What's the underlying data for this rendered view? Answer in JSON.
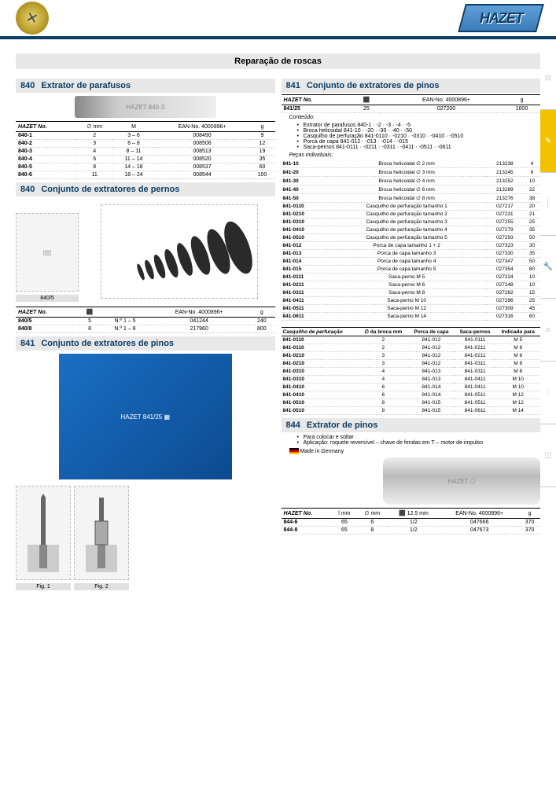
{
  "brand": "HAZET",
  "page_title": "Reparação de roscas",
  "sections": {
    "s840a": {
      "num": "840",
      "name": "Extrator de parafusos"
    },
    "s840b": {
      "num": "840",
      "name": "Conjunto de extratores de pernos"
    },
    "s841a": {
      "num": "841",
      "name": "Conjunto de extratores de pinos"
    },
    "s841b": {
      "num": "841",
      "name": "Conjunto de extratores de pinos"
    },
    "s844": {
      "num": "844",
      "name": "Extrator de pinos"
    }
  },
  "t840": {
    "headers": {
      "no": "HAZET\nNo.",
      "dia": "∅\nmm",
      "m": "M",
      "ean": "EAN-No.\n4000896+"
    },
    "rows": [
      [
        "840-1",
        "2",
        "3 – 6",
        "008490",
        "9"
      ],
      [
        "840-2",
        "3",
        "6 – 8",
        "008506",
        "12"
      ],
      [
        "840-3",
        "4",
        "8 – 11",
        "008513",
        "19"
      ],
      [
        "840-4",
        "6",
        "11 – 14",
        "008520",
        "35"
      ],
      [
        "840-5",
        "8",
        "14 – 18",
        "008537",
        "60"
      ],
      [
        "840-6",
        "11",
        "18 – 24",
        "008544",
        "100"
      ]
    ]
  },
  "t840set": {
    "headers": {
      "no": "HAZET\nNo.",
      "pcs": "pcs",
      "ean": "EAN-No.\n4000896+"
    },
    "rows": [
      [
        "840/5",
        "5",
        "N.º 1 – 5",
        "041244",
        "240"
      ],
      [
        "840/8",
        "8",
        "N.º 1 – 8",
        "217960",
        "800"
      ]
    ]
  },
  "t841top": {
    "headers": {
      "no": "HAZET\nNo.",
      "pcs": "pcs",
      "ean": "EAN-No.\n4000896+"
    },
    "rows": [
      [
        "841/25",
        "25",
        "",
        "027200",
        "1600"
      ]
    ]
  },
  "contents_title": "Conteúdo:",
  "bullets_841": [
    "Extrator de parafusos 840-1 · -2 · -3 · -4 · -5",
    "Broca helicoidal 841-10 · -20 · -30 · -40 · -50",
    "Casquilho de perfuração 841-0110 · -0210 · -0310 · -0410 · -0510",
    "Porca de capa 841-012 · -013 · -014 · -015",
    "Saca-pernos 841-0111 · -0211 · -0311 · -0411 · -0511 · -0611"
  ],
  "indiv_title": "Peças individuais:",
  "t841parts": [
    [
      "841-10",
      "Broca helicoidal ∅ 2 mm",
      "213238",
      "4"
    ],
    [
      "841-20",
      "Broca helicoidal ∅ 3 mm",
      "213245",
      "6"
    ],
    [
      "841-30",
      "Broca helicoidal ∅ 4 mm",
      "213252",
      "10"
    ],
    [
      "841-40",
      "Broca helicoidal ∅ 6 mm",
      "213269",
      "22"
    ],
    [
      "841-50",
      "Broca helicoidal ∅ 8 mm",
      "213276",
      "38"
    ],
    [
      "841-0110",
      "Casquilho de perfuração tamanho 1",
      "027217",
      "20"
    ],
    [
      "841-0210",
      "Casquilho de perfuração tamanho 2",
      "027231",
      "21"
    ],
    [
      "841-0310",
      "Casquilho de perfuração tamanho 3",
      "027255",
      "25"
    ],
    [
      "841-0410",
      "Casquilho de perfuração tamanho 4",
      "027279",
      "35"
    ],
    [
      "841-0510",
      "Casquilho de perfuração tamanho 5",
      "027293",
      "50"
    ],
    [
      "841-012",
      "Porca de capa tamanho 1 + 2",
      "027323",
      "30"
    ],
    [
      "841-013",
      "Porca de capa tamanho 3",
      "027330",
      "35"
    ],
    [
      "841-014",
      "Porca de capa tamanho 4",
      "027347",
      "50"
    ],
    [
      "841-015",
      "Porca de capa tamanho 5",
      "027354",
      "80"
    ],
    [
      "841-0111",
      "Saca-perno M 5",
      "027224",
      "10"
    ],
    [
      "841-0211",
      "Saca-perno M 6",
      "027248",
      "10"
    ],
    [
      "841-0311",
      "Saca-perno M 8",
      "027262",
      "15"
    ],
    [
      "841-0411",
      "Saca-perno M 10",
      "027286",
      "25"
    ],
    [
      "841-0511",
      "Saca-perno M 12",
      "027309",
      "45"
    ],
    [
      "841-0611",
      "Saca-perno M 14",
      "027316",
      "60"
    ]
  ],
  "matrix": {
    "headers": [
      "Casquilho de perfuração",
      "∅ da broca mm",
      "Porca de capa",
      "Saca-pernos",
      "Indicado para"
    ],
    "rows": [
      [
        "841-0110",
        "2",
        "841-012",
        "841-0111",
        "M 5"
      ],
      [
        "841-0110",
        "2",
        "841-012",
        "841-0211",
        "M 6"
      ],
      [
        "841-0210",
        "3",
        "841-012",
        "841-0211",
        "M 6"
      ],
      [
        "841-0210",
        "3",
        "841-012",
        "841-0311",
        "M 8"
      ],
      [
        "841-0310",
        "4",
        "841-013",
        "841-0311",
        "M 8"
      ],
      [
        "841-0310",
        "4",
        "841-013",
        "841-0411",
        "M 10"
      ],
      [
        "841-0410",
        "6",
        "841-014",
        "841-0411",
        "M 10"
      ],
      [
        "841-0410",
        "6",
        "841-014",
        "841-0511",
        "M 12"
      ],
      [
        "841-0510",
        "8",
        "841-015",
        "841-0511",
        "M 12"
      ],
      [
        "841-0510",
        "8",
        "841-015",
        "841-0611",
        "M 14"
      ]
    ]
  },
  "s844_bullets": [
    "Para colocar e soltar",
    "Aplicação: roquete reversível – chave de fendas em T – motor de impulso"
  ],
  "made_in": "Made in Germany",
  "t844": {
    "headers": {
      "no": "HAZET\nNo.",
      "l": "l\nmm",
      "d": "∅\nmm",
      "sq": "⬛\n12.5 mm",
      "ean": "EAN-No.\n4000896+"
    },
    "rows": [
      [
        "844-6",
        "65",
        "6",
        "1/2",
        "047666",
        "370"
      ],
      [
        "844-8",
        "65",
        "8",
        "1/2",
        "047673",
        "370"
      ]
    ]
  },
  "fig1": "Fig. 1",
  "fig2": "Fig. 2",
  "set_label": "840/5",
  "colors": {
    "accent_blue": "#0b3d66",
    "bar_gray": "#e8e8e8",
    "side_yellow": "#f2c200"
  }
}
